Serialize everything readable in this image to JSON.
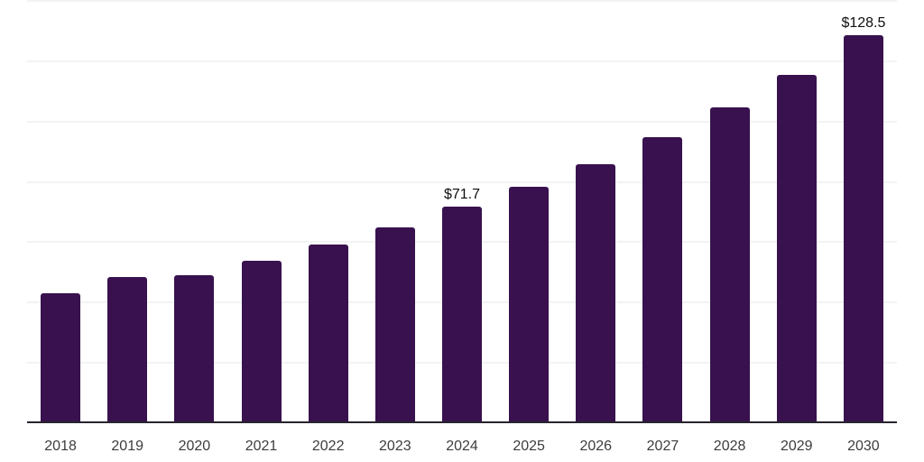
{
  "chart_data": {
    "type": "bar",
    "categories": [
      "2018",
      "2019",
      "2020",
      "2021",
      "2022",
      "2023",
      "2024",
      "2025",
      "2026",
      "2027",
      "2028",
      "2029",
      "2030"
    ],
    "values": [
      43.1,
      48.5,
      49.2,
      53.7,
      59.3,
      65.0,
      71.7,
      78.4,
      85.9,
      94.9,
      104.6,
      115.5,
      128.5
    ],
    "bar_labels": [
      "",
      "",
      "",
      "",
      "",
      "",
      "$71.7",
      "",
      "",
      "",
      "",
      "",
      "$128.5"
    ],
    "value_prefix": "$",
    "title": "",
    "xlabel": "",
    "ylabel": "",
    "ylim": [
      0,
      140
    ],
    "gridline_step": 20,
    "grid": "horizontal",
    "legend": "none",
    "y_tick_labels_visible": false,
    "colors": {
      "bar": "#38114e",
      "axis_line": "#28242e",
      "gridline": "#f3f3f6",
      "value_label": "#0e0e0e",
      "tick_label": "#3d3d3d",
      "background": "#ffffff"
    }
  }
}
